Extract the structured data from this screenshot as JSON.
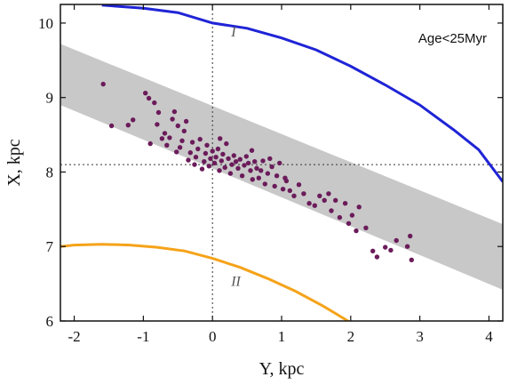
{
  "chart_data": {
    "type": "scatter",
    "xlabel": "Y, kpc",
    "ylabel": "X, kpc",
    "xlim": [
      -2.2,
      4.2
    ],
    "ylim": [
      6,
      10.25
    ],
    "xticks": [
      -2,
      -1,
      0,
      1,
      2,
      3,
      4
    ],
    "yticks": [
      6,
      7,
      8,
      9,
      10
    ],
    "annotation": "Age<25Myr",
    "reference_lines": {
      "vertical_x": 0,
      "horizontal_y": 8.1,
      "style": "dotted"
    },
    "band": {
      "color": "#c8c8c8",
      "upper": [
        [
          -2.2,
          9.72
        ],
        [
          4.2,
          7.3
        ]
      ],
      "lower": [
        [
          -2.2,
          8.9
        ],
        [
          4.2,
          6.42
        ]
      ]
    },
    "curves": [
      {
        "label": "I",
        "color": "#1f24d6",
        "points": [
          [
            -1.6,
            10.24
          ],
          [
            -1.0,
            10.2
          ],
          [
            -0.5,
            10.14
          ],
          [
            0,
            10.0
          ],
          [
            0.5,
            9.93
          ],
          [
            1.0,
            9.8
          ],
          [
            1.5,
            9.64
          ],
          [
            2.0,
            9.42
          ],
          [
            2.5,
            9.17
          ],
          [
            3.0,
            8.9
          ],
          [
            3.5,
            8.56
          ],
          [
            3.85,
            8.3
          ],
          [
            4.2,
            7.87
          ]
        ],
        "label_pos": [
          0.27,
          9.82
        ]
      },
      {
        "label": "II",
        "color": "#f5a31a",
        "points": [
          [
            -2.2,
            7.0
          ],
          [
            -2.0,
            7.02
          ],
          [
            -1.6,
            7.03
          ],
          [
            -1.2,
            7.02
          ],
          [
            -0.8,
            6.99
          ],
          [
            -0.4,
            6.94
          ],
          [
            0,
            6.84
          ],
          [
            0.4,
            6.72
          ],
          [
            0.8,
            6.57
          ],
          [
            1.2,
            6.4
          ],
          [
            1.6,
            6.2
          ],
          [
            2.05,
            5.95
          ]
        ],
        "label_pos": [
          0.27,
          6.47
        ]
      }
    ],
    "series": [
      {
        "color": "#6b1b5a",
        "points": [
          [
            -1.58,
            9.18
          ],
          [
            -1.46,
            8.62
          ],
          [
            -1.22,
            8.63
          ],
          [
            -1.15,
            8.7
          ],
          [
            -0.97,
            9.06
          ],
          [
            -0.92,
            8.99
          ],
          [
            -0.84,
            8.93
          ],
          [
            -0.8,
            8.64
          ],
          [
            -0.78,
            8.8
          ],
          [
            -0.73,
            8.45
          ],
          [
            -0.69,
            8.52
          ],
          [
            -0.66,
            8.36
          ],
          [
            -0.62,
            8.46
          ],
          [
            -0.58,
            8.71
          ],
          [
            -0.55,
            8.81
          ],
          [
            -0.5,
            8.62
          ],
          [
            -0.47,
            8.33
          ],
          [
            -0.44,
            8.42
          ],
          [
            -0.41,
            8.55
          ],
          [
            -0.38,
            8.68
          ],
          [
            -0.35,
            8.16
          ],
          [
            -0.32,
            8.26
          ],
          [
            -0.29,
            8.4
          ],
          [
            -0.26,
            8.1
          ],
          [
            -0.24,
            8.2
          ],
          [
            -0.21,
            8.31
          ],
          [
            -0.18,
            8.44
          ],
          [
            -0.15,
            8.04
          ],
          [
            -0.12,
            8.14
          ],
          [
            -0.1,
            8.25
          ],
          [
            -0.08,
            8.36
          ],
          [
            -0.05,
            8.08
          ],
          [
            -0.03,
            8.18
          ],
          [
            0.0,
            8.28
          ],
          [
            0.03,
            8.12
          ],
          [
            0.05,
            8.2
          ],
          [
            0.08,
            8.31
          ],
          [
            0.1,
            8.02
          ],
          [
            0.13,
            8.15
          ],
          [
            0.15,
            8.24
          ],
          [
            0.18,
            8.06
          ],
          [
            0.2,
            8.38
          ],
          [
            0.23,
            8.18
          ],
          [
            0.26,
            7.98
          ],
          [
            0.28,
            8.1
          ],
          [
            0.31,
            8.22
          ],
          [
            0.34,
            8.14
          ],
          [
            0.37,
            8.05
          ],
          [
            0.4,
            8.17
          ],
          [
            0.43,
            7.95
          ],
          [
            0.46,
            8.09
          ],
          [
            0.49,
            8.21
          ],
          [
            0.52,
            8.12
          ],
          [
            0.55,
            8.02
          ],
          [
            0.58,
            7.9
          ],
          [
            0.61,
            8.14
          ],
          [
            0.64,
            8.05
          ],
          [
            0.67,
            7.92
          ],
          [
            0.7,
            8.02
          ],
          [
            0.73,
            8.15
          ],
          [
            0.76,
            7.84
          ],
          [
            0.8,
            7.98
          ],
          [
            0.83,
            8.18
          ],
          [
            0.86,
            8.07
          ],
          [
            0.9,
            7.81
          ],
          [
            0.93,
            7.95
          ],
          [
            0.97,
            8.12
          ],
          [
            1.02,
            7.77
          ],
          [
            1.07,
            7.88
          ],
          [
            1.12,
            7.75
          ],
          [
            1.18,
            7.68
          ],
          [
            1.25,
            7.83
          ],
          [
            1.32,
            7.71
          ],
          [
            1.4,
            7.58
          ],
          [
            1.48,
            7.55
          ],
          [
            1.55,
            7.68
          ],
          [
            1.62,
            7.62
          ],
          [
            1.68,
            7.71
          ],
          [
            1.72,
            7.48
          ],
          [
            1.78,
            7.62
          ],
          [
            1.84,
            7.39
          ],
          [
            1.92,
            7.58
          ],
          [
            1.97,
            7.31
          ],
          [
            2.02,
            7.42
          ],
          [
            2.08,
            7.21
          ],
          [
            2.12,
            7.53
          ],
          [
            2.22,
            7.25
          ],
          [
            2.32,
            6.94
          ],
          [
            2.38,
            6.86
          ],
          [
            2.5,
            6.99
          ],
          [
            2.58,
            6.95
          ],
          [
            2.66,
            7.08
          ],
          [
            2.82,
            7.0
          ],
          [
            2.86,
            7.14
          ],
          [
            2.88,
            6.82
          ],
          [
            -0.9,
            8.38
          ],
          [
            -0.52,
            8.27
          ],
          [
            0.11,
            8.45
          ],
          [
            0.57,
            8.29
          ],
          [
            1.05,
            7.92
          ]
        ]
      }
    ]
  }
}
